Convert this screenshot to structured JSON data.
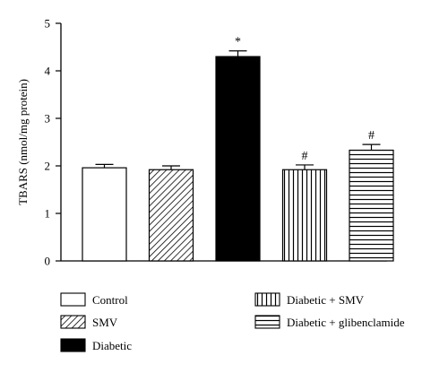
{
  "chart_data": {
    "type": "bar",
    "categories": [
      "Control",
      "SMV",
      "Diabetic",
      "Diabetic + SMV",
      "Diabetic + glibenclamide"
    ],
    "values": [
      1.96,
      1.92,
      4.3,
      1.92,
      2.33
    ],
    "errors": [
      0.07,
      0.08,
      0.12,
      0.1,
      0.12
    ],
    "annotations": [
      "",
      "",
      "*",
      "#",
      "#"
    ],
    "patterns": [
      "white",
      "diagonal",
      "black",
      "vertical",
      "horizontal"
    ],
    "title": "",
    "xlabel": "",
    "ylabel": "TBARS (nmol/mg protein)",
    "ylim": [
      0,
      5
    ],
    "yticks": [
      0,
      1,
      2,
      3,
      4,
      5
    ],
    "grid": false,
    "legend": {
      "position": "bottom",
      "entries": [
        {
          "label": "Control",
          "pattern": "white"
        },
        {
          "label": "SMV",
          "pattern": "diagonal"
        },
        {
          "label": "Diabetic",
          "pattern": "black"
        },
        {
          "label": "Diabetic + SMV",
          "pattern": "vertical"
        },
        {
          "label": "Diabetic + glibenclamide",
          "pattern": "horizontal"
        }
      ]
    }
  }
}
